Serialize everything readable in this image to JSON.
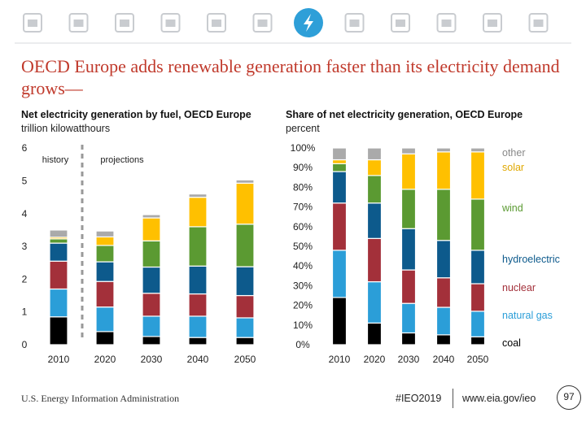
{
  "header": {
    "icons": [
      "data-icon",
      "petroleum-icon",
      "factory-icon",
      "commercial-building-icon",
      "industry-icon",
      "car-icon",
      "electricity-icon",
      "mining-icon",
      "oil-barrel-icon",
      "natural-gas-icon",
      "co2-icon",
      "analysis-icon"
    ],
    "active_icon": "electricity-icon",
    "accent_color": "#2E9FD8",
    "icon_color": "#C9CCD0"
  },
  "title": "OECD Europe adds renewable generation faster than its electricity demand grows—",
  "left_chart": {
    "title": "Net electricity generation by fuel, OECD Europe",
    "unit": "trillion kilowatthours"
  },
  "right_chart": {
    "title": "Share of net electricity generation, OECD Europe",
    "unit": "percent"
  },
  "colors": {
    "coal": "#000000",
    "natural_gas": "#2B9ED8",
    "nuclear": "#A3303A",
    "hydroelectric": "#0D5A8C",
    "wind": "#5B9A32",
    "solar": "#FFC000",
    "other": "#AAAAAA",
    "title_red": "#C0392B"
  },
  "chart_data": [
    {
      "type": "bar",
      "stacked": true,
      "title": "Net electricity generation by fuel, OECD Europe",
      "ylabel": "trillion kilowatthours",
      "categories": [
        "2010",
        "2020",
        "2030",
        "2040",
        "2050"
      ],
      "ylim": [
        0,
        6
      ],
      "yticks": [
        0,
        1,
        2,
        3,
        4,
        5,
        6
      ],
      "annotations": [
        "history",
        "projections"
      ],
      "series": [
        {
          "name": "coal",
          "values": [
            0.85,
            0.4,
            0.25,
            0.22,
            0.22
          ]
        },
        {
          "name": "natural gas",
          "values": [
            0.85,
            0.75,
            0.62,
            0.65,
            0.6
          ]
        },
        {
          "name": "nuclear",
          "values": [
            0.85,
            0.78,
            0.7,
            0.68,
            0.68
          ]
        },
        {
          "name": "hydroelectric",
          "values": [
            0.55,
            0.6,
            0.8,
            0.85,
            0.88
          ]
        },
        {
          "name": "wind",
          "values": [
            0.13,
            0.5,
            0.8,
            1.2,
            1.3
          ]
        },
        {
          "name": "solar",
          "values": [
            0.05,
            0.26,
            0.7,
            0.9,
            1.25
          ]
        },
        {
          "name": "other",
          "values": [
            0.22,
            0.18,
            0.1,
            0.1,
            0.1
          ]
        }
      ]
    },
    {
      "type": "bar",
      "stacked": true,
      "title": "Share of net electricity generation, OECD Europe",
      "ylabel": "percent",
      "categories": [
        "2010",
        "2020",
        "2030",
        "2040",
        "2050"
      ],
      "ylim": [
        0,
        100
      ],
      "yticks": [
        "0%",
        "10%",
        "20%",
        "30%",
        "40%",
        "50%",
        "60%",
        "70%",
        "80%",
        "90%",
        "100%"
      ],
      "legend": [
        "coal",
        "natural gas",
        "nuclear",
        "hydroelectric",
        "wind",
        "solar",
        "other"
      ],
      "series": [
        {
          "name": "coal",
          "values": [
            24,
            11,
            6,
            5,
            4
          ]
        },
        {
          "name": "natural gas",
          "values": [
            24,
            21,
            15,
            14,
            13
          ]
        },
        {
          "name": "nuclear",
          "values": [
            24,
            22,
            17,
            15,
            14
          ]
        },
        {
          "name": "hydroelectric",
          "values": [
            16,
            18,
            21,
            19,
            17
          ]
        },
        {
          "name": "wind",
          "values": [
            4,
            14,
            20,
            26,
            26
          ]
        },
        {
          "name": "solar",
          "values": [
            2,
            8,
            18,
            19,
            24
          ]
        },
        {
          "name": "other",
          "values": [
            6,
            6,
            3,
            2,
            2
          ]
        }
      ]
    }
  ],
  "footer": {
    "source": "U.S. Energy Information Administration",
    "hashtag": "#IEO2019",
    "url": "www.eia.gov/ieo",
    "page_number": "97"
  }
}
